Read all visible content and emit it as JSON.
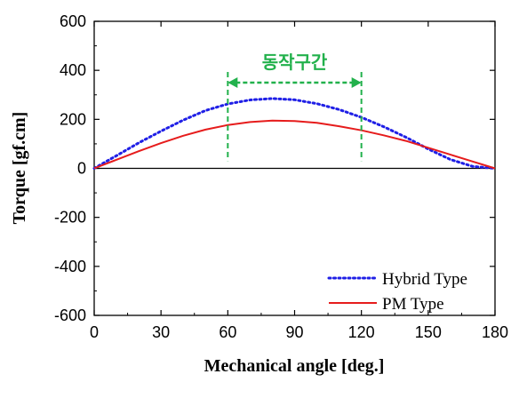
{
  "chart_data": {
    "type": "line",
    "xlabel": "Mechanical angle [deg.]",
    "ylabel": "Torque [gf.cm]",
    "xlim": [
      0,
      180
    ],
    "ylim": [
      -600,
      600
    ],
    "xticks": [
      0,
      30,
      60,
      90,
      120,
      150,
      180
    ],
    "yticks": [
      -600,
      -400,
      -200,
      0,
      200,
      400,
      600
    ],
    "grid": false,
    "legend_position": "bottom-right",
    "series": [
      {
        "name": "Hybrid Type",
        "color": "#1f1fe6",
        "style": "dotted",
        "x": [
          0,
          10,
          20,
          30,
          40,
          50,
          60,
          70,
          80,
          90,
          100,
          110,
          120,
          130,
          140,
          150,
          160,
          170,
          180
        ],
        "y": [
          0,
          52,
          104,
          152,
          197,
          236,
          263,
          279,
          285,
          280,
          264,
          240,
          208,
          170,
          127,
          79,
          36,
          8,
          0
        ]
      },
      {
        "name": "PM Type",
        "color": "#e61c1c",
        "style": "solid",
        "x": [
          0,
          10,
          20,
          30,
          40,
          50,
          60,
          70,
          80,
          90,
          100,
          110,
          120,
          130,
          140,
          150,
          160,
          170,
          180
        ],
        "y": [
          0,
          35,
          70,
          103,
          133,
          158,
          177,
          189,
          195,
          193,
          186,
          172,
          155,
          135,
          112,
          84,
          56,
          28,
          0
        ]
      }
    ],
    "annotations": [
      {
        "text": "동작구간",
        "color": "#22b14c",
        "x_range": [
          60,
          120
        ],
        "arrow_y": 350
      }
    ]
  }
}
